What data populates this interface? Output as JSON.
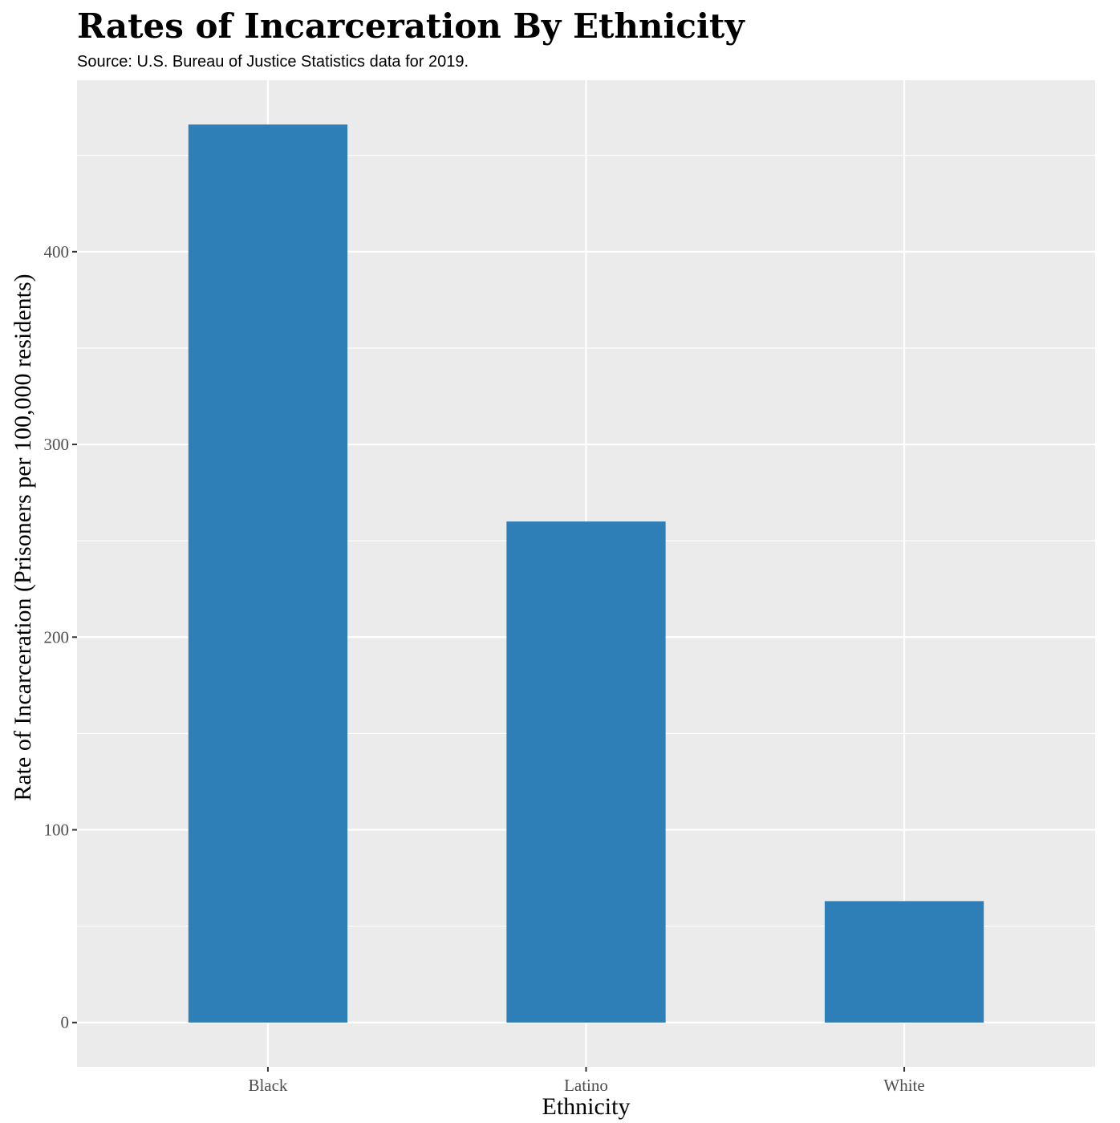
{
  "chart_data": {
    "type": "bar",
    "title": "Rates of Incarceration By Ethnicity",
    "subtitle": "Source: U.S. Bureau of Justice Statistics data for 2019.",
    "xlabel": "Ethnicity",
    "ylabel": "Rate of Incarceration (Prisoners per 100,000 residents)",
    "categories": [
      "Black",
      "Latino",
      "White"
    ],
    "values": [
      466,
      260,
      63
    ],
    "ylim": [
      -23,
      489
    ],
    "yticks": [
      0,
      100,
      200,
      300,
      400
    ],
    "ytick_labels": [
      "0",
      "100",
      "200",
      "300",
      "400"
    ],
    "grid": true,
    "legend": "none",
    "colors": {
      "bar": "#2e7fb8",
      "panel": "#ebebeb",
      "gridline": "#ffffff",
      "tick_text": "#4d4d4d"
    }
  }
}
